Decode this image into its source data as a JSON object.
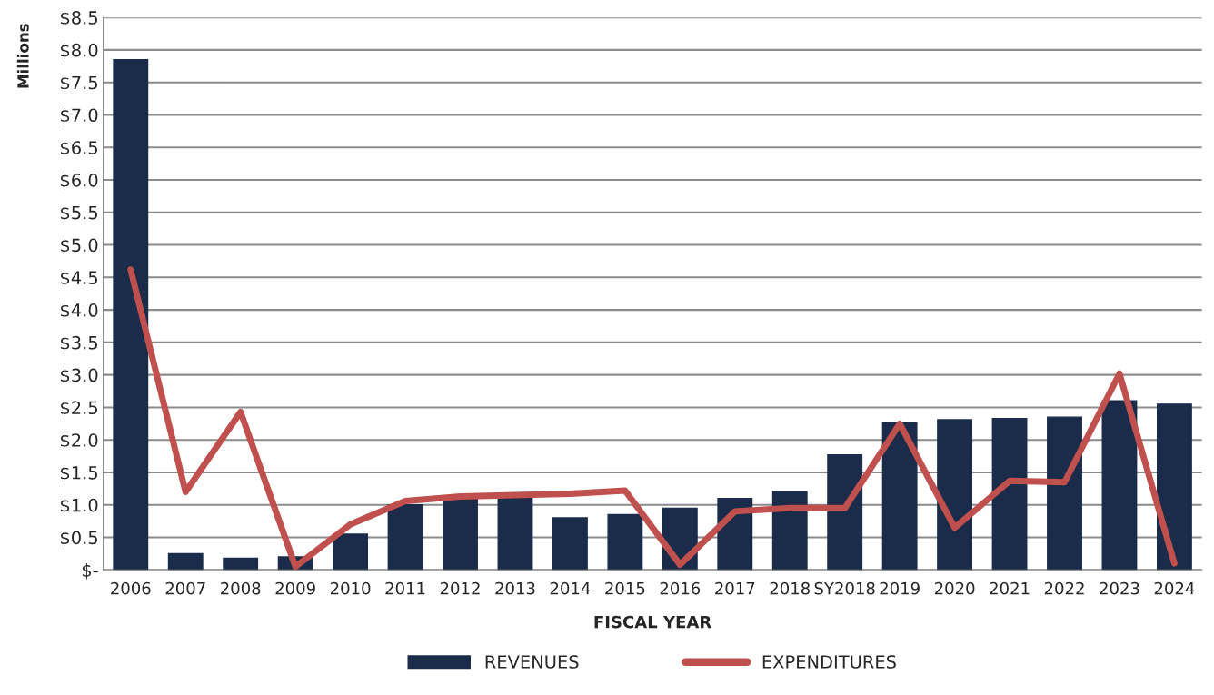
{
  "chart_data": {
    "type": "bar",
    "xlabel": "FISCAL YEAR",
    "ylabel": "Millions",
    "categories": [
      "2006",
      "2007",
      "2008",
      "2009",
      "2010",
      "2011",
      "2012",
      "2013",
      "2014",
      "2015",
      "2016",
      "2017",
      "2018",
      "SY2018",
      "2019",
      "2020",
      "2021",
      "2022",
      "2023",
      "2024"
    ],
    "series": [
      {
        "name": "REVENUES",
        "color": "#1b2b4a",
        "values": [
          7.85,
          0.25,
          0.18,
          0.2,
          0.55,
          1.0,
          1.1,
          1.15,
          0.8,
          0.85,
          0.95,
          1.1,
          1.2,
          1.77,
          2.27,
          2.31,
          2.33,
          2.35,
          2.6,
          2.55
        ]
      },
      {
        "name": "EXPENDITURES",
        "type": "line",
        "color": "#c0504d",
        "values": [
          4.62,
          1.2,
          2.43,
          0.05,
          0.7,
          1.06,
          1.13,
          1.15,
          1.17,
          1.22,
          0.08,
          0.9,
          0.95,
          0.95,
          2.25,
          0.65,
          1.37,
          1.35,
          3.02,
          0.1
        ]
      }
    ],
    "ylim": [
      0,
      8.5
    ],
    "yticks": [
      {
        "value": 0,
        "label": "$-"
      },
      {
        "value": 0.5,
        "label": "$0.5"
      },
      {
        "value": 1,
        "label": "$1.0"
      },
      {
        "value": 1.5,
        "label": "$1.5"
      },
      {
        "value": 2,
        "label": "$2.0"
      },
      {
        "value": 2.5,
        "label": "$2.5"
      },
      {
        "value": 3,
        "label": "$3.0"
      },
      {
        "value": 3.5,
        "label": "$3.5"
      },
      {
        "value": 4,
        "label": "$4.0"
      },
      {
        "value": 4.5,
        "label": "$4.5"
      },
      {
        "value": 5,
        "label": "$5.0"
      },
      {
        "value": 5.5,
        "label": "$5.5"
      },
      {
        "value": 6,
        "label": "$6.0"
      },
      {
        "value": 6.5,
        "label": "$6.5"
      },
      {
        "value": 7,
        "label": "$7.0"
      },
      {
        "value": 7.5,
        "label": "$7.5"
      },
      {
        "value": 8,
        "label": "$8.0"
      },
      {
        "value": 8.5,
        "label": "$8.5"
      }
    ],
    "grid": "y",
    "legend": "bottom"
  }
}
